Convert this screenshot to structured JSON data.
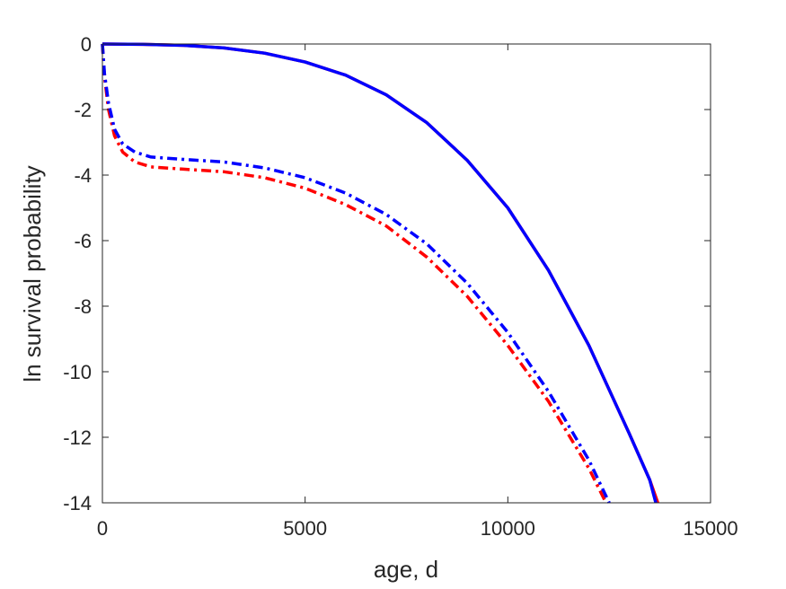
{
  "chart_data": {
    "type": "line",
    "title": "",
    "xlabel": "age, d",
    "ylabel": "ln survival probability",
    "xlim": [
      0,
      15000
    ],
    "ylim": [
      -14,
      0
    ],
    "xticks": [
      0,
      5000,
      10000,
      15000
    ],
    "yticks": [
      0,
      -2,
      -4,
      -6,
      -8,
      -10,
      -12,
      -14
    ],
    "grid": false,
    "legend": "none",
    "series": [
      {
        "color": "#ff0000",
        "style": "solid",
        "x": [
          0,
          1000,
          2000,
          3000,
          4000,
          5000,
          6000,
          7000,
          8000,
          9000,
          10000,
          11000,
          12000,
          13000,
          13500,
          13700
        ],
        "y": [
          0,
          -0.01,
          -0.04,
          -0.12,
          -0.28,
          -0.55,
          -0.95,
          -1.55,
          -2.4,
          -3.55,
          -5.0,
          -6.9,
          -9.2,
          -11.9,
          -13.3,
          -14.0
        ]
      },
      {
        "color": "#0000ff",
        "style": "solid",
        "x": [
          0,
          1000,
          2000,
          3000,
          4000,
          5000,
          6000,
          7000,
          8000,
          9000,
          10000,
          11000,
          12000,
          13000,
          13500,
          13650
        ],
        "y": [
          0,
          -0.01,
          -0.04,
          -0.12,
          -0.28,
          -0.55,
          -0.95,
          -1.55,
          -2.4,
          -3.55,
          -5.0,
          -6.9,
          -9.2,
          -11.9,
          -13.3,
          -14.0
        ]
      },
      {
        "color": "#ff0000",
        "style": "dash-dot",
        "x": [
          0,
          50,
          150,
          300,
          500,
          800,
          1200,
          2000,
          3000,
          4000,
          5000,
          6000,
          7000,
          8000,
          9000,
          10000,
          11000,
          12000,
          12420
        ],
        "y": [
          0,
          -1.0,
          -2.0,
          -2.8,
          -3.3,
          -3.6,
          -3.75,
          -3.82,
          -3.9,
          -4.08,
          -4.4,
          -4.9,
          -5.55,
          -6.5,
          -7.7,
          -9.2,
          -10.9,
          -12.95,
          -14.0
        ]
      },
      {
        "color": "#0000ff",
        "style": "dash-dot",
        "x": [
          0,
          50,
          150,
          300,
          500,
          800,
          1200,
          2000,
          3000,
          4000,
          5000,
          6000,
          7000,
          8000,
          9000,
          10000,
          11000,
          12000,
          12500
        ],
        "y": [
          0,
          -0.9,
          -1.8,
          -2.6,
          -3.05,
          -3.3,
          -3.45,
          -3.52,
          -3.6,
          -3.78,
          -4.08,
          -4.55,
          -5.2,
          -6.1,
          -7.3,
          -8.8,
          -10.6,
          -12.7,
          -14.0
        ]
      }
    ]
  }
}
